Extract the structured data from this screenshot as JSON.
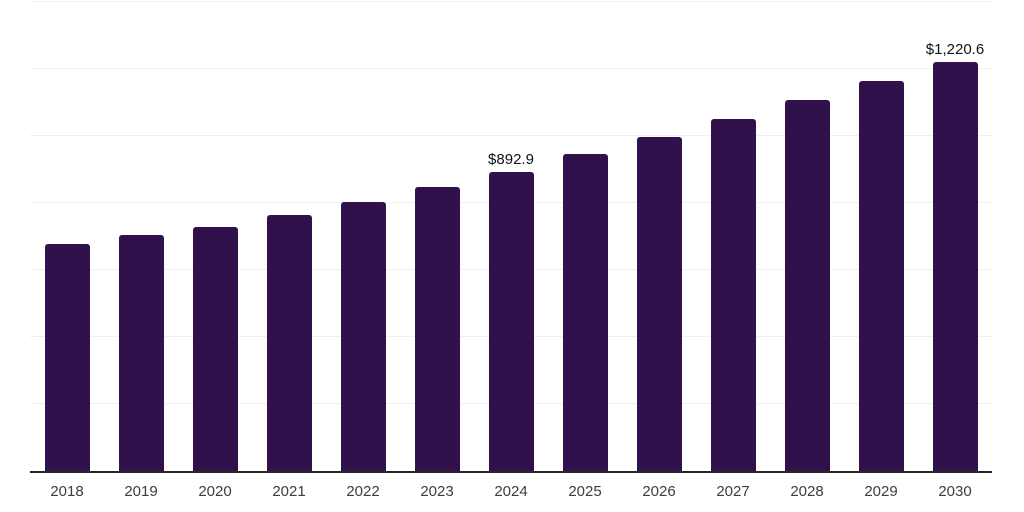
{
  "chart_data": {
    "type": "bar",
    "categories": [
      "2018",
      "2019",
      "2020",
      "2021",
      "2022",
      "2023",
      "2024",
      "2025",
      "2026",
      "2027",
      "2028",
      "2029",
      "2030"
    ],
    "values": [
      678,
      705,
      727,
      765,
      803,
      848,
      892.9,
      947,
      996,
      1050,
      1108,
      1165,
      1220.6
    ],
    "data_labels": {
      "2024": "$892.9",
      "2030": "$1,220.6"
    },
    "ylim": [
      0,
      1400
    ],
    "gridline_step": 200,
    "grid": true,
    "legend": "none",
    "bar_color": "#31114c",
    "axis_line_color": "#262626",
    "gridline_color": "#efefef",
    "value_label_color": "#111111",
    "tick_label_color": "#3d3d3d"
  }
}
